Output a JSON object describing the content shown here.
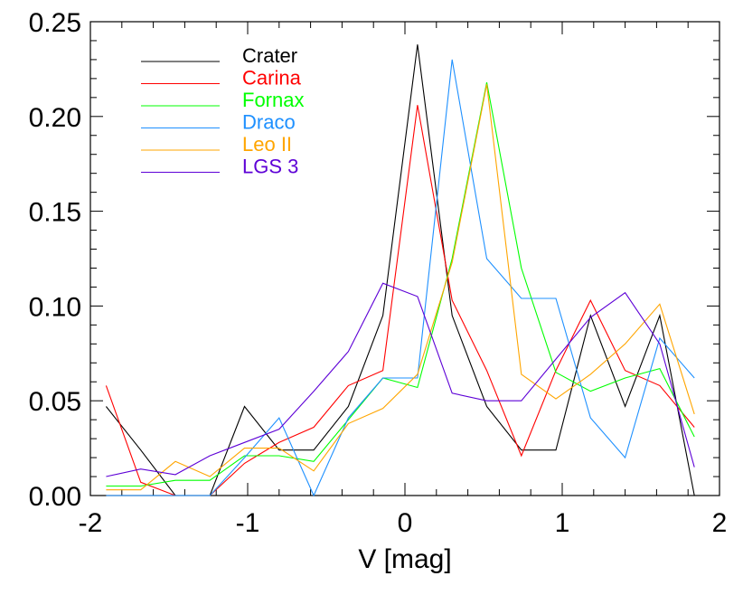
{
  "chart_data": {
    "type": "line",
    "xlabel": "V [mag]",
    "ylabel": "",
    "xlim": [
      -2,
      2
    ],
    "ylim": [
      0,
      0.25
    ],
    "x_ticks": [
      "-2",
      "-1",
      "0",
      "1",
      "2"
    ],
    "y_ticks": [
      "0.00",
      "0.05",
      "0.10",
      "0.15",
      "0.20",
      "0.25"
    ],
    "legend_position": "top-left",
    "grid": false,
    "series": [
      {
        "name": "Crater",
        "color": "#000000",
        "points": [
          [
            -1.9,
            0.047
          ],
          [
            -1.68,
            0.024
          ],
          [
            -1.46,
            0.0
          ],
          [
            -1.24,
            0.0
          ],
          [
            -1.02,
            0.047
          ],
          [
            -0.8,
            0.024
          ],
          [
            -0.58,
            0.024
          ],
          [
            -0.36,
            0.047
          ],
          [
            -0.14,
            0.095
          ],
          [
            0.08,
            0.238
          ],
          [
            0.3,
            0.095
          ],
          [
            0.52,
            0.047
          ],
          [
            0.74,
            0.024
          ],
          [
            0.96,
            0.024
          ],
          [
            1.18,
            0.095
          ],
          [
            1.4,
            0.047
          ],
          [
            1.62,
            0.095
          ],
          [
            1.84,
            0.0
          ]
        ]
      },
      {
        "name": "Carina",
        "color": "#ff0000",
        "points": [
          [
            -1.9,
            0.058
          ],
          [
            -1.68,
            0.007
          ],
          [
            -1.46,
            0.0
          ],
          [
            -1.24,
            0.0
          ],
          [
            -1.02,
            0.017
          ],
          [
            -0.8,
            0.028
          ],
          [
            -0.58,
            0.036
          ],
          [
            -0.36,
            0.058
          ],
          [
            -0.14,
            0.066
          ],
          [
            0.08,
            0.206
          ],
          [
            0.3,
            0.103
          ],
          [
            0.52,
            0.066
          ],
          [
            0.74,
            0.021
          ],
          [
            0.96,
            0.066
          ],
          [
            1.18,
            0.103
          ],
          [
            1.4,
            0.066
          ],
          [
            1.62,
            0.058
          ],
          [
            1.84,
            0.036
          ]
        ]
      },
      {
        "name": "Fornax",
        "color": "#00ff00",
        "points": [
          [
            -1.9,
            0.005
          ],
          [
            -1.68,
            0.005
          ],
          [
            -1.46,
            0.008
          ],
          [
            -1.24,
            0.008
          ],
          [
            -1.02,
            0.021
          ],
          [
            -0.8,
            0.021
          ],
          [
            -0.58,
            0.018
          ],
          [
            -0.36,
            0.04
          ],
          [
            -0.14,
            0.062
          ],
          [
            0.08,
            0.057
          ],
          [
            0.3,
            0.125
          ],
          [
            0.52,
            0.218
          ],
          [
            0.74,
            0.12
          ],
          [
            0.96,
            0.065
          ],
          [
            1.18,
            0.055
          ],
          [
            1.4,
            0.062
          ],
          [
            1.62,
            0.067
          ],
          [
            1.84,
            0.031
          ]
        ]
      },
      {
        "name": "Draco",
        "color": "#1e90ff",
        "points": [
          [
            -1.9,
            0.0
          ],
          [
            -1.68,
            0.0
          ],
          [
            -1.46,
            0.0
          ],
          [
            -1.24,
            0.0
          ],
          [
            -1.02,
            0.02
          ],
          [
            -0.8,
            0.041
          ],
          [
            -0.58,
            0.0
          ],
          [
            -0.36,
            0.041
          ],
          [
            -0.14,
            0.062
          ],
          [
            0.08,
            0.062
          ],
          [
            0.3,
            0.23
          ],
          [
            0.52,
            0.125
          ],
          [
            0.74,
            0.104
          ],
          [
            0.96,
            0.104
          ],
          [
            1.18,
            0.041
          ],
          [
            1.4,
            0.02
          ],
          [
            1.62,
            0.083
          ],
          [
            1.84,
            0.062
          ]
        ]
      },
      {
        "name": "Leo II",
        "color": "#ffa500",
        "points": [
          [
            -1.9,
            0.003
          ],
          [
            -1.68,
            0.003
          ],
          [
            -1.46,
            0.018
          ],
          [
            -1.24,
            0.01
          ],
          [
            -1.02,
            0.025
          ],
          [
            -0.8,
            0.025
          ],
          [
            -0.58,
            0.013
          ],
          [
            -0.36,
            0.038
          ],
          [
            -0.14,
            0.046
          ],
          [
            0.08,
            0.064
          ],
          [
            0.3,
            0.123
          ],
          [
            0.52,
            0.217
          ],
          [
            0.74,
            0.064
          ],
          [
            0.96,
            0.051
          ],
          [
            1.18,
            0.064
          ],
          [
            1.4,
            0.08
          ],
          [
            1.62,
            0.101
          ],
          [
            1.84,
            0.043
          ]
        ]
      },
      {
        "name": "LGS 3",
        "color": "#5d00d6",
        "points": [
          [
            -1.9,
            0.01
          ],
          [
            -1.68,
            0.014
          ],
          [
            -1.46,
            0.011
          ],
          [
            -1.24,
            0.021
          ],
          [
            -1.02,
            0.028
          ],
          [
            -0.8,
            0.035
          ],
          [
            -0.58,
            0.055
          ],
          [
            -0.36,
            0.076
          ],
          [
            -0.14,
            0.112
          ],
          [
            0.08,
            0.105
          ],
          [
            0.3,
            0.054
          ],
          [
            0.52,
            0.05
          ],
          [
            0.74,
            0.05
          ],
          [
            0.96,
            0.072
          ],
          [
            1.18,
            0.094
          ],
          [
            1.4,
            0.107
          ],
          [
            1.62,
            0.08
          ],
          [
            1.84,
            0.015
          ]
        ]
      }
    ]
  }
}
